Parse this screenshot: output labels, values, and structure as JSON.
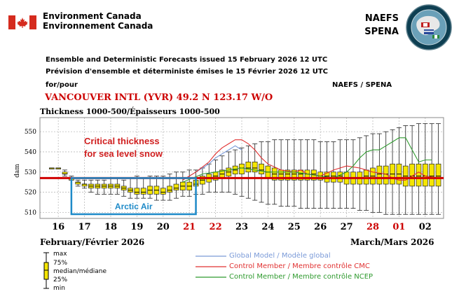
{
  "header": {
    "agency_en": "Environment Canada",
    "agency_fr": "Environnement Canada",
    "program_1": "NAEFS",
    "program_2": "SPENA",
    "issued_en": "Ensemble and Deterministic Forecasts issued 15 February 2026 12 UTC",
    "issued_fr": "Prévision d'ensemble et déterministe émises le 15 Février 2026 12 UTC",
    "for_label": "for/pour",
    "program_right": "NAEFS / SPENA",
    "station": "VANCOUVER INTL (YVR) 49.2 N  123.17 W/O"
  },
  "colors": {
    "box_fill": "#f5e600",
    "threshold": "#d00000",
    "global": "#7a9ad8",
    "cmc": "#e03030",
    "ncep": "#2e9a2e",
    "weekday": "#000000",
    "weekend": "#cc0000",
    "arctic_box": "#1e8ac8"
  },
  "legend": {
    "max": "max",
    "p75": "75%",
    "median": "median/médiane",
    "p25": "25%",
    "min": "min",
    "global": "Global Model / Modèle global",
    "cmc": "Control Member / Membre contrôle CMC",
    "ncep": "Control Member / Membre contrôle NCEP"
  },
  "annotations": {
    "critical_1": "Critical thickness",
    "critical_2": "for sea level snow",
    "arctic": "Arctic Air"
  },
  "months": {
    "left": "February/Février 2026",
    "right": "March/Mars 2026"
  },
  "chart_data": {
    "type": "box",
    "title": "Thickness 1000-500/Épaisseurs 1000-500",
    "ylabel": "dam",
    "ylim": [
      507,
      557
    ],
    "yticks": [
      510,
      520,
      530,
      540,
      550
    ],
    "day_labels": [
      {
        "label": "16",
        "weekend": false
      },
      {
        "label": "17",
        "weekend": false
      },
      {
        "label": "18",
        "weekend": false
      },
      {
        "label": "19",
        "weekend": false
      },
      {
        "label": "20",
        "weekend": false
      },
      {
        "label": "21",
        "weekend": true
      },
      {
        "label": "22",
        "weekend": true
      },
      {
        "label": "23",
        "weekend": false
      },
      {
        "label": "24",
        "weekend": false
      },
      {
        "label": "25",
        "weekend": false
      },
      {
        "label": "26",
        "weekend": false
      },
      {
        "label": "27",
        "weekend": false
      },
      {
        "label": "28",
        "weekend": true
      },
      {
        "label": "01",
        "weekend": true
      },
      {
        "label": "02",
        "weekend": false
      }
    ],
    "x_day_start": 15.5,
    "x_day_end": 30.5,
    "day_tick_offset": 0.5,
    "threshold": 527,
    "boxes": [
      {
        "t": 15.75,
        "min": 532,
        "q1": 532,
        "med": 532,
        "q3": 532,
        "max": 532
      },
      {
        "t": 16.0,
        "min": 532,
        "q1": 532,
        "med": 532,
        "q3": 532,
        "max": 532
      },
      {
        "t": 16.25,
        "min": 528,
        "q1": 529,
        "med": 529,
        "q3": 530,
        "max": 531
      },
      {
        "t": 16.5,
        "min": 526,
        "q1": 526,
        "med": 527,
        "q3": 527,
        "max": 528
      },
      {
        "t": 16.75,
        "min": 523,
        "q1": 524,
        "med": 525,
        "q3": 525,
        "max": 526
      },
      {
        "t": 17.0,
        "min": 522,
        "q1": 523,
        "med": 524,
        "q3": 524,
        "max": 526
      },
      {
        "t": 17.25,
        "min": 520,
        "q1": 522,
        "med": 523,
        "q3": 524,
        "max": 526
      },
      {
        "t": 17.5,
        "min": 519,
        "q1": 522,
        "med": 523,
        "q3": 524,
        "max": 526
      },
      {
        "t": 17.75,
        "min": 519,
        "q1": 522,
        "med": 523,
        "q3": 524,
        "max": 526
      },
      {
        "t": 18.0,
        "min": 519,
        "q1": 522,
        "med": 523,
        "q3": 524,
        "max": 527
      },
      {
        "t": 18.25,
        "min": 519,
        "q1": 522,
        "med": 523,
        "q3": 524,
        "max": 527
      },
      {
        "t": 18.5,
        "min": 518,
        "q1": 521,
        "med": 522,
        "q3": 523,
        "max": 526
      },
      {
        "t": 18.75,
        "min": 517,
        "q1": 520,
        "med": 521,
        "q3": 522,
        "max": 527
      },
      {
        "t": 19.0,
        "min": 517,
        "q1": 519,
        "med": 520,
        "q3": 522,
        "max": 528
      },
      {
        "t": 19.25,
        "min": 517,
        "q1": 519,
        "med": 520,
        "q3": 522,
        "max": 527
      },
      {
        "t": 19.5,
        "min": 517,
        "q1": 519,
        "med": 521,
        "q3": 523,
        "max": 528
      },
      {
        "t": 19.75,
        "min": 516,
        "q1": 519,
        "med": 521,
        "q3": 523,
        "max": 528
      },
      {
        "t": 20.0,
        "min": 516,
        "q1": 519,
        "med": 520,
        "q3": 522,
        "max": 528
      },
      {
        "t": 20.25,
        "min": 516,
        "q1": 520,
        "med": 521,
        "q3": 523,
        "max": 529
      },
      {
        "t": 20.5,
        "min": 517,
        "q1": 521,
        "med": 522,
        "q3": 524,
        "max": 530
      },
      {
        "t": 20.75,
        "min": 518,
        "q1": 521,
        "med": 523,
        "q3": 525,
        "max": 530
      },
      {
        "t": 21.0,
        "min": 518,
        "q1": 521,
        "med": 523,
        "q3": 525,
        "max": 531
      },
      {
        "t": 21.25,
        "min": 519,
        "q1": 523,
        "med": 524,
        "q3": 526,
        "max": 531
      },
      {
        "t": 21.5,
        "min": 519,
        "q1": 524,
        "med": 526,
        "q3": 528,
        "max": 532
      },
      {
        "t": 21.75,
        "min": 520,
        "q1": 525,
        "med": 527,
        "q3": 529,
        "max": 534
      },
      {
        "t": 22.0,
        "min": 520,
        "q1": 526,
        "med": 528,
        "q3": 530,
        "max": 536
      },
      {
        "t": 22.25,
        "min": 520,
        "q1": 527,
        "med": 529,
        "q3": 531,
        "max": 538
      },
      {
        "t": 22.5,
        "min": 520,
        "q1": 528,
        "med": 530,
        "q3": 532,
        "max": 540
      },
      {
        "t": 22.75,
        "min": 519,
        "q1": 529,
        "med": 531,
        "q3": 533,
        "max": 541
      },
      {
        "t": 23.0,
        "min": 518,
        "q1": 529,
        "med": 532,
        "q3": 534,
        "max": 542
      },
      {
        "t": 23.25,
        "min": 517,
        "q1": 530,
        "med": 532,
        "q3": 535,
        "max": 543
      },
      {
        "t": 23.5,
        "min": 516,
        "q1": 530,
        "med": 532,
        "q3": 535,
        "max": 544
      },
      {
        "t": 23.75,
        "min": 515,
        "q1": 529,
        "med": 531,
        "q3": 534,
        "max": 545
      },
      {
        "t": 24.0,
        "min": 514,
        "q1": 527,
        "med": 530,
        "q3": 533,
        "max": 545
      },
      {
        "t": 24.25,
        "min": 514,
        "q1": 526,
        "med": 529,
        "q3": 532,
        "max": 546
      },
      {
        "t": 24.5,
        "min": 513,
        "q1": 526,
        "med": 529,
        "q3": 531,
        "max": 546
      },
      {
        "t": 24.75,
        "min": 513,
        "q1": 526,
        "med": 529,
        "q3": 531,
        "max": 546
      },
      {
        "t": 25.0,
        "min": 513,
        "q1": 526,
        "med": 529,
        "q3": 531,
        "max": 546
      },
      {
        "t": 25.25,
        "min": 512,
        "q1": 526,
        "med": 529,
        "q3": 531,
        "max": 546
      },
      {
        "t": 25.5,
        "min": 512,
        "q1": 526,
        "med": 529,
        "q3": 531,
        "max": 546
      },
      {
        "t": 25.75,
        "min": 512,
        "q1": 526,
        "med": 529,
        "q3": 531,
        "max": 546
      },
      {
        "t": 26.0,
        "min": 512,
        "q1": 526,
        "med": 528,
        "q3": 530,
        "max": 545
      },
      {
        "t": 26.25,
        "min": 512,
        "q1": 525,
        "med": 528,
        "q3": 530,
        "max": 545
      },
      {
        "t": 26.5,
        "min": 512,
        "q1": 525,
        "med": 528,
        "q3": 530,
        "max": 545
      },
      {
        "t": 26.75,
        "min": 512,
        "q1": 525,
        "med": 528,
        "q3": 530,
        "max": 546
      },
      {
        "t": 27.0,
        "min": 512,
        "q1": 524,
        "med": 527,
        "q3": 530,
        "max": 546
      },
      {
        "t": 27.25,
        "min": 512,
        "q1": 524,
        "med": 527,
        "q3": 530,
        "max": 546
      },
      {
        "t": 27.5,
        "min": 511,
        "q1": 524,
        "med": 527,
        "q3": 530,
        "max": 547
      },
      {
        "t": 27.75,
        "min": 511,
        "q1": 524,
        "med": 528,
        "q3": 531,
        "max": 548
      },
      {
        "t": 28.0,
        "min": 510,
        "q1": 524,
        "med": 528,
        "q3": 532,
        "max": 549
      },
      {
        "t": 28.25,
        "min": 510,
        "q1": 524,
        "med": 529,
        "q3": 533,
        "max": 549
      },
      {
        "t": 28.5,
        "min": 509,
        "q1": 524,
        "med": 529,
        "q3": 533,
        "max": 550
      },
      {
        "t": 28.75,
        "min": 509,
        "q1": 524,
        "med": 529,
        "q3": 534,
        "max": 551
      },
      {
        "t": 29.0,
        "min": 509,
        "q1": 524,
        "med": 529,
        "q3": 534,
        "max": 552
      },
      {
        "t": 29.25,
        "min": 509,
        "q1": 523,
        "med": 528,
        "q3": 533,
        "max": 553
      },
      {
        "t": 29.5,
        "min": 509,
        "q1": 523,
        "med": 528,
        "q3": 534,
        "max": 553
      },
      {
        "t": 29.75,
        "min": 509,
        "q1": 523,
        "med": 528,
        "q3": 534,
        "max": 554
      },
      {
        "t": 30.0,
        "min": 509,
        "q1": 523,
        "med": 528,
        "q3": 534,
        "max": 554
      },
      {
        "t": 30.25,
        "min": 509,
        "q1": 523,
        "med": 528,
        "q3": 534,
        "max": 554
      },
      {
        "t": 30.5,
        "min": 509,
        "q1": 523,
        "med": 528,
        "q3": 534,
        "max": 554
      }
    ],
    "lines": {
      "global": [
        [
          20.75,
          526
        ],
        [
          21.0,
          528
        ],
        [
          21.25,
          530
        ],
        [
          21.5,
          532
        ],
        [
          21.75,
          534
        ],
        [
          22.0,
          537
        ],
        [
          22.25,
          539
        ],
        [
          22.5,
          541
        ],
        [
          22.75,
          543
        ],
        [
          23.0,
          541
        ]
      ],
      "cmc": [
        [
          20.75,
          526
        ],
        [
          21.25,
          530
        ],
        [
          21.75,
          535
        ],
        [
          22.0,
          539
        ],
        [
          22.25,
          542
        ],
        [
          22.5,
          544
        ],
        [
          22.75,
          546
        ],
        [
          23.0,
          546
        ],
        [
          23.25,
          544
        ],
        [
          23.5,
          541
        ],
        [
          23.75,
          537
        ],
        [
          24.0,
          534
        ],
        [
          24.5,
          531
        ],
        [
          25.0,
          530
        ],
        [
          25.25,
          531
        ],
        [
          25.5,
          529
        ],
        [
          26.0,
          528
        ],
        [
          26.5,
          531
        ],
        [
          27.0,
          533
        ],
        [
          27.5,
          532
        ],
        [
          28.0,
          530
        ],
        [
          28.5,
          529
        ],
        [
          28.75,
          527
        ],
        [
          29.0,
          526
        ],
        [
          29.25,
          526
        ],
        [
          29.5,
          528
        ],
        [
          29.75,
          530
        ],
        [
          30.0,
          528
        ],
        [
          30.5,
          527
        ]
      ],
      "ncep": [
        [
          20.75,
          525
        ],
        [
          21.5,
          529
        ],
        [
          22.0,
          530
        ],
        [
          22.5,
          531
        ],
        [
          23.0,
          532
        ],
        [
          23.5,
          531
        ],
        [
          24.0,
          530
        ],
        [
          24.5,
          530
        ],
        [
          25.0,
          530
        ],
        [
          25.5,
          529
        ],
        [
          26.0,
          528
        ],
        [
          26.5,
          527
        ],
        [
          27.0,
          530
        ],
        [
          27.25,
          533
        ],
        [
          27.5,
          537
        ],
        [
          27.75,
          540
        ],
        [
          28.0,
          541
        ],
        [
          28.25,
          541
        ],
        [
          28.5,
          543
        ],
        [
          28.75,
          545
        ],
        [
          29.0,
          547
        ],
        [
          29.25,
          547
        ],
        [
          29.5,
          541
        ],
        [
          29.75,
          535
        ],
        [
          30.0,
          536
        ],
        [
          30.25,
          536
        ]
      ]
    }
  }
}
